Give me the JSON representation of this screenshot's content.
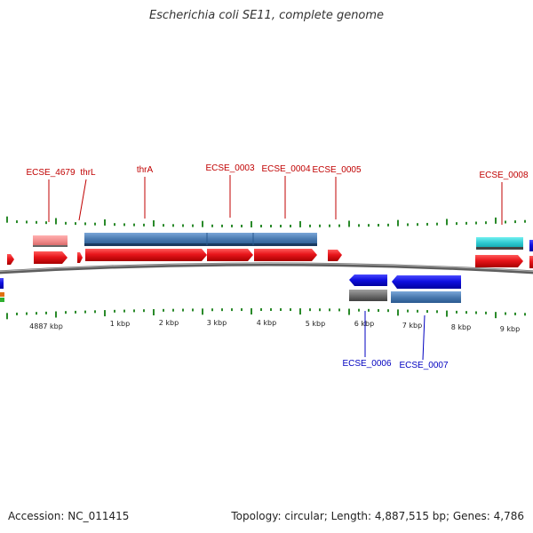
{
  "title": "Escherichia coli SE11, complete genome",
  "footer": {
    "accession": "Accession: NC_011415",
    "summary": "Topology: circular; Length: 4,887,515 bp; Genes: 4,786"
  },
  "colors": {
    "forward_cds": "#e8151b",
    "reverse_cds": "#1010e0",
    "gene_bar": "#4a7ab0",
    "pseudo_bar": "#f08a8a",
    "other_gene": "#2ec8d0",
    "grey_gene": "#707070",
    "backbone": "#7a7a7a",
    "tick": "#2a8a2a",
    "top_label": "#c00000",
    "bottom_label": "#0000c0"
  },
  "tick_labels": [
    "4887 kbp",
    "1 kbp",
    "2 kbp",
    "3 kbp",
    "4 kbp",
    "5 kbp",
    "6 kbp",
    "7 kbp",
    "8 kbp",
    "9 kbp"
  ],
  "top_labels": [
    "ECSE_4679",
    "thrL",
    "thrA",
    "ECSE_0003",
    "ECSE_0004",
    "ECSE_0005",
    "ECSE_0008"
  ],
  "bottom_labels": [
    "ECSE_0006",
    "ECSE_0007"
  ]
}
